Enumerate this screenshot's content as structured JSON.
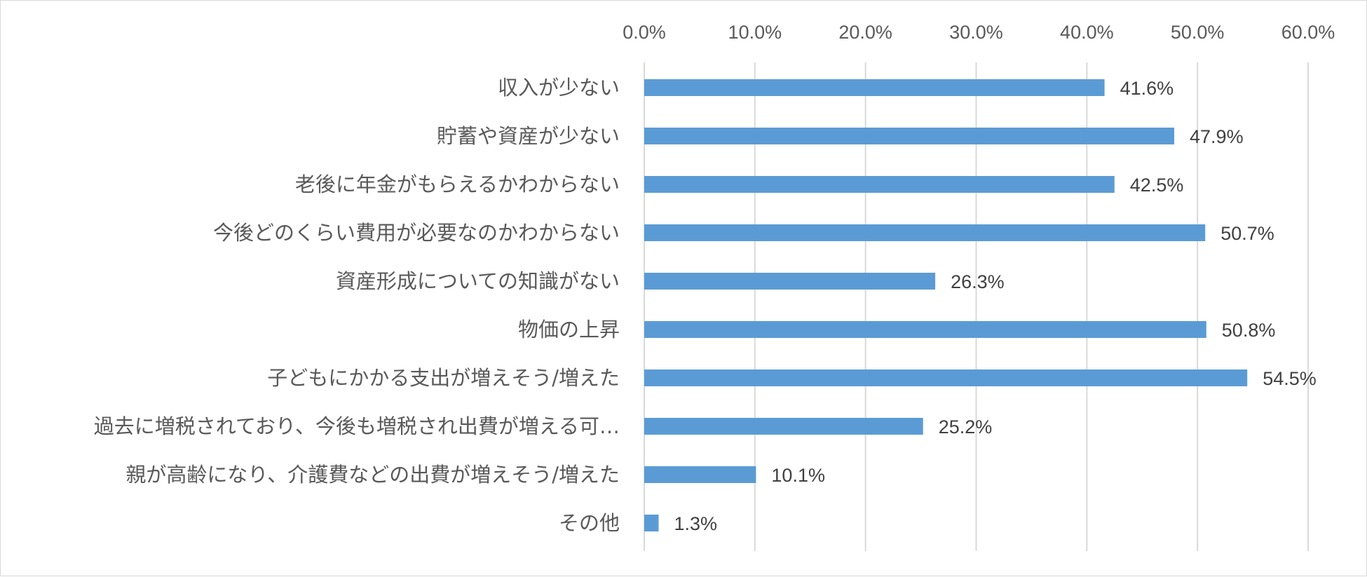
{
  "chart_data": {
    "type": "bar",
    "orientation": "horizontal",
    "categories": [
      "収入が少ない",
      "貯蓄や資産が少ない",
      "老後に年金がもらえるかわからない",
      "今後どのくらい費用が必要なのかわからない",
      "資産形成についての知識がない",
      "物価の上昇",
      "子どもにかかる支出が増えそう/増えた",
      "過去に増税されており、今後も増税され出費が増える可…",
      "親が高齢になり、介護費などの出費が増えそう/増えた",
      "その他"
    ],
    "values": [
      41.6,
      47.9,
      42.5,
      50.7,
      26.3,
      50.8,
      54.5,
      25.2,
      10.1,
      1.3
    ],
    "data_labels": [
      "41.6%",
      "47.9%",
      "42.5%",
      "50.7%",
      "26.3%",
      "50.8%",
      "54.5%",
      "25.2%",
      "10.1%",
      "1.3%"
    ],
    "x_ticks": [
      "0.0%",
      "10.0%",
      "20.0%",
      "30.0%",
      "40.0%",
      "50.0%",
      "60.0%"
    ],
    "xlim": [
      0,
      60
    ],
    "x_axis_position": "top",
    "grid": true,
    "legend": false,
    "title": "",
    "xlabel": "",
    "ylabel": "",
    "colors": {
      "bar": "#5b9bd5",
      "grid": "#d9d9d9",
      "text": "#595959",
      "data_label": "#404040",
      "border": "#d9d9d9"
    }
  }
}
